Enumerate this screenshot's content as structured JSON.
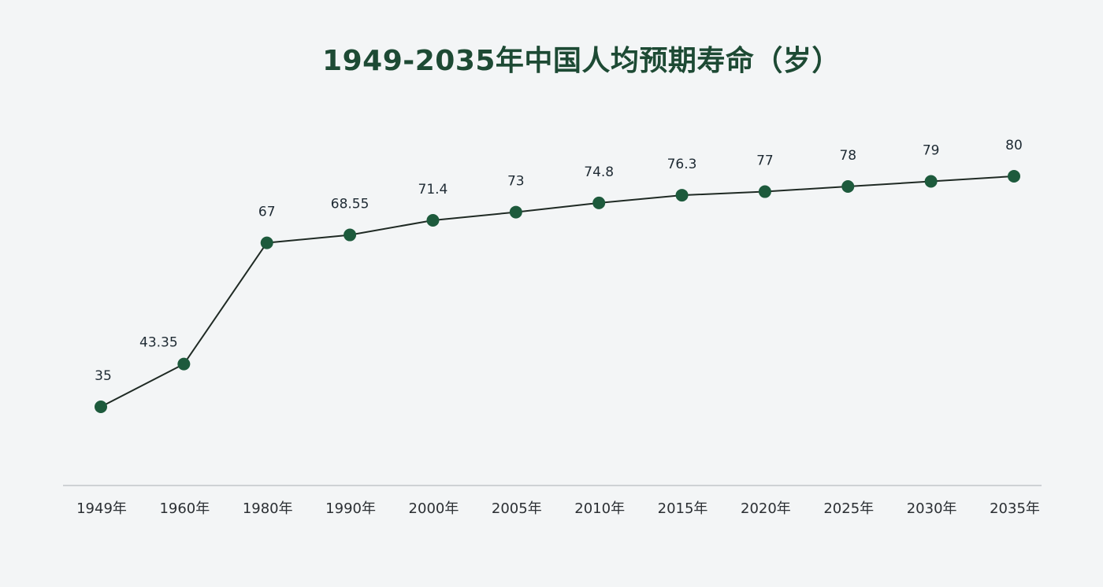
{
  "chart_data": {
    "type": "line",
    "title": "1949-2035年中国人均预期寿命（岁）",
    "xlabel": "",
    "ylabel": "",
    "ylim": [
      35,
      80
    ],
    "grid": false,
    "legend": "none",
    "categories": [
      "1949年",
      "1960年",
      "1980年",
      "1990年",
      "2000年",
      "2005年",
      "2010年",
      "2015年",
      "2020年",
      "2025年",
      "2030年",
      "2035年"
    ],
    "series": [
      {
        "name": "人均预期寿命",
        "values": [
          35,
          43.35,
          67,
          68.55,
          71.4,
          73,
          74.8,
          76.3,
          77,
          78,
          79,
          80
        ],
        "labels": [
          "35",
          "43.35",
          "67",
          "68.55",
          "71.4",
          "73",
          "74.8",
          "76.3",
          "77",
          "78",
          "79",
          "80"
        ]
      }
    ],
    "colors": {
      "title": "#1d4a34",
      "line": "#1f2a24",
      "point": "#1d5a3c",
      "axis": "#b7bcbf"
    }
  }
}
